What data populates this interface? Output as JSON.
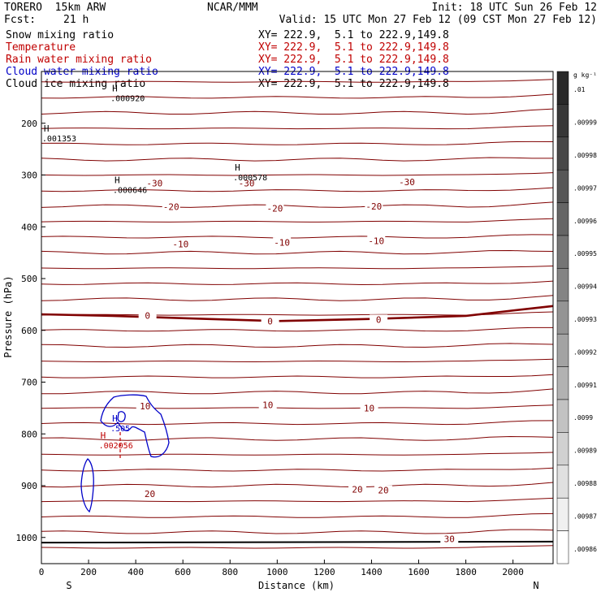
{
  "header": {
    "model": "TORERO  15km ARW",
    "center": "NCAR/MMM",
    "init": "Init: 18 UTC Sun 26 Feb 12",
    "fcst_label": "Fcst:",
    "fcst_value": "21 h",
    "valid": "Valid: 15 UTC Mon 27 Feb 12 (09 CST Mon 27 Feb 12)"
  },
  "legend": [
    {
      "name": "Snow mixing ratio",
      "xy": "XY= 222.9,  5.1 to 222.9,149.8",
      "color": "#000000"
    },
    {
      "name": "Temperature",
      "xy": "XY= 222.9,  5.1 to 222.9,149.8",
      "color": "#c00000"
    },
    {
      "name": "Rain water mixing ratio",
      "xy": "XY= 222.9,  5.1 to 222.9,149.8",
      "color": "#c00000"
    },
    {
      "name": "Cloud water mixing ratio",
      "xy": "XY= 222.9,  5.1 to 222.9,149.8",
      "color": "#0000c8"
    },
    {
      "name": "Cloud ice mixing ratio",
      "xy": "XY= 222.9,  5.1 to 222.9,149.8",
      "color": "#000000"
    }
  ],
  "chart_data": {
    "type": "line",
    "xlabel": "Distance (km)",
    "ylabel": "Pressure (hPa)",
    "x_ticks": [
      0,
      200,
      400,
      600,
      800,
      1000,
      1200,
      1400,
      1600,
      1800,
      2000
    ],
    "xlim": [
      0,
      2170
    ],
    "y_ticks": [
      200,
      300,
      400,
      500,
      600,
      700,
      800,
      900,
      1000
    ],
    "ylim": [
      1030,
      100
    ],
    "x_end_labels": {
      "left": "S",
      "right": "N"
    },
    "temperature_isotherms": {
      "color": "#800000",
      "levels": [
        {
          "label": "-30",
          "p": [
            316,
            316
          ]
        },
        {
          "label": "-20",
          "p": [
            361,
            361
          ]
        },
        {
          "label": "-10",
          "p": [
            432,
            432
          ]
        },
        {
          "label": "0",
          "p": [
            569,
            580,
            574,
            553
          ],
          "bold": true
        },
        {
          "label": "10",
          "p": [
            750,
            750
          ]
        },
        {
          "label": "20",
          "p": [
            916,
            915,
            910,
            908
          ]
        },
        {
          "label": "30",
          "p": [
            1005,
            1002,
            998,
            990
          ]
        }
      ],
      "level_label_positions": [
        {
          "text": "-30",
          "x": 480,
          "p": 316
        },
        {
          "text": "-30",
          "x": 870,
          "p": 316
        },
        {
          "text": "-30",
          "x": 1550,
          "p": 313
        },
        {
          "text": "-20",
          "x": 550,
          "p": 361
        },
        {
          "text": "-20",
          "x": 990,
          "p": 364
        },
        {
          "text": "-20",
          "x": 1410,
          "p": 360
        },
        {
          "text": "-10",
          "x": 590,
          "p": 433
        },
        {
          "text": "-10",
          "x": 1020,
          "p": 430
        },
        {
          "text": "-10",
          "x": 1420,
          "p": 427
        },
        {
          "text": "0",
          "x": 450,
          "p": 571
        },
        {
          "text": "0",
          "x": 970,
          "p": 582
        },
        {
          "text": "0",
          "x": 1430,
          "p": 579
        },
        {
          "text": "10",
          "x": 440,
          "p": 746
        },
        {
          "text": "10",
          "x": 960,
          "p": 744
        },
        {
          "text": "10",
          "x": 1390,
          "p": 750
        },
        {
          "text": "20",
          "x": 460,
          "p": 916
        },
        {
          "text": "20",
          "x": 1340,
          "p": 907
        },
        {
          "text": "20",
          "x": 1450,
          "p": 909
        },
        {
          "text": "30",
          "x": 1730,
          "p": 1003
        }
      ]
    },
    "annotations": [
      {
        "marker": "H",
        "value": ".000920",
        "x": 300,
        "p": 145
      },
      {
        "marker": "H",
        "value": ".001353",
        "x": 10,
        "p": 222
      },
      {
        "marker": "H",
        "value": ".000578",
        "x": 820,
        "p": 298
      },
      {
        "marker": "H",
        "value": ".000646",
        "x": 310,
        "p": 322
      },
      {
        "marker": "H",
        "value": ".505",
        "x": 300,
        "p": 782,
        "color": "#0000c8"
      },
      {
        "marker": "H",
        "value": ".002056",
        "x": 250,
        "p": 815,
        "color": "#c00000"
      }
    ],
    "colorbar": {
      "unit": "g kg⁻¹",
      "labels": [
        ".01",
        ".00999",
        ".00998",
        ".00997",
        ".00996",
        ".00995",
        ".00994",
        ".00993",
        ".00992",
        ".00991",
        ".0099",
        ".00989",
        ".00988",
        ".00987",
        ".00986"
      ]
    }
  }
}
